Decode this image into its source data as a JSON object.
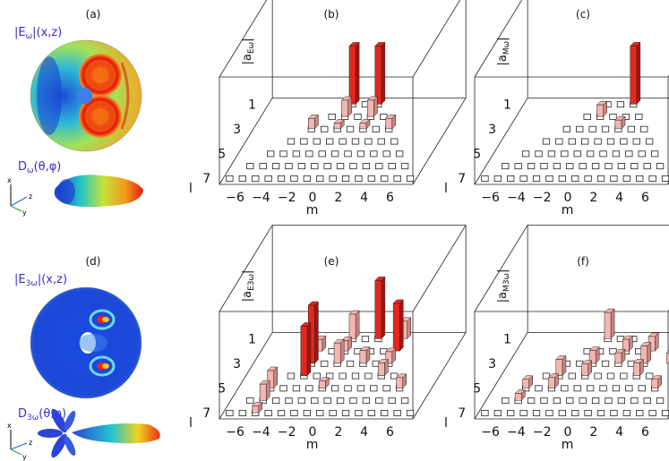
{
  "panels": [
    {
      "id": "a",
      "label": "(a)",
      "field_label": "|E",
      "field_sub": "ω",
      "field_tail": "|(x,z)",
      "pattern_label": "D",
      "pattern_sub": "ω",
      "pattern_tail": "(θ,φ)",
      "axes_letters": [
        "x",
        "z",
        "y"
      ]
    },
    {
      "id": "d",
      "label": "(d)",
      "field_label": "|E",
      "field_sub": "3ω",
      "field_tail": "|(x,z)",
      "pattern_label": "D",
      "pattern_sub": "3ω",
      "pattern_tail": "(θ,φ)",
      "axes_letters": [
        "x",
        "z",
        "y"
      ]
    }
  ],
  "chart_data": [
    {
      "id": "b",
      "type": "bar3d",
      "panel_label": "(b)",
      "zlabel_main": "|a",
      "zlabel_sub": "Eω",
      "zlabel_end": "|",
      "xlabel": "m",
      "ylabel": "l",
      "m_ticks": [
        "−6",
        "−4",
        "−2",
        "0",
        "2",
        "4",
        "6"
      ],
      "l_ticks": [
        "1",
        "3",
        "5",
        "7"
      ],
      "l_range": [
        1,
        7
      ],
      "m_range": [
        -7,
        7
      ],
      "bars": [
        {
          "l": 1,
          "m": -1,
          "value": 1.0,
          "color": "red"
        },
        {
          "l": 1,
          "m": 1,
          "value": 1.0,
          "color": "red"
        },
        {
          "l": 2,
          "m": -1,
          "value": 0.28,
          "color": "pink"
        },
        {
          "l": 2,
          "m": 1,
          "value": 0.28,
          "color": "pink"
        },
        {
          "l": 3,
          "m": -3,
          "value": 0.18,
          "color": "pink"
        },
        {
          "l": 3,
          "m": -1,
          "value": 0.1,
          "color": "pink"
        },
        {
          "l": 3,
          "m": 1,
          "value": 0.1,
          "color": "pink"
        },
        {
          "l": 3,
          "m": 3,
          "value": 0.18,
          "color": "pink"
        }
      ]
    },
    {
      "id": "c",
      "type": "bar3d",
      "panel_label": "(c)",
      "zlabel_main": "|a",
      "zlabel_sub": "Mω",
      "zlabel_end": "|",
      "xlabel": "m",
      "ylabel": "l",
      "m_ticks": [
        "−6",
        "−4",
        "−2",
        "0",
        "2",
        "4",
        "6"
      ],
      "l_ticks": [
        "1",
        "3",
        "5",
        "7"
      ],
      "l_range": [
        1,
        7
      ],
      "m_range": [
        -7,
        7
      ],
      "bars": [
        {
          "l": 1,
          "m": 1,
          "value": 1.0,
          "color": "red"
        },
        {
          "l": 2,
          "m": -1,
          "value": 0.2,
          "color": "pink"
        },
        {
          "l": 3,
          "m": 1,
          "value": 0.15,
          "color": "pink"
        }
      ]
    },
    {
      "id": "e",
      "type": "bar3d",
      "panel_label": "(e)",
      "zlabel_main": "|a",
      "zlabel_sub": "E3ω",
      "zlabel_end": "|",
      "xlabel": "m",
      "ylabel": "l",
      "m_ticks": [
        "−6",
        "−4",
        "−2",
        "0",
        "2",
        "4",
        "6"
      ],
      "l_ticks": [
        "1",
        "3",
        "5",
        "7"
      ],
      "l_range": [
        1,
        7
      ],
      "m_range": [
        -7,
        7
      ],
      "bars": [
        {
          "l": 1,
          "m": -1,
          "value": 0.42,
          "color": "pink"
        },
        {
          "l": 1,
          "m": 1,
          "value": 1.0,
          "color": "red"
        },
        {
          "l": 1,
          "m": 3,
          "value": 0.3,
          "color": "pink"
        },
        {
          "l": 2,
          "m": -3,
          "value": 0.2,
          "color": "pink"
        },
        {
          "l": 2,
          "m": -1,
          "value": 0.18,
          "color": "pink"
        },
        {
          "l": 2,
          "m": 3,
          "value": 0.82,
          "color": "red"
        },
        {
          "l": 3,
          "m": -3,
          "value": 1.0,
          "color": "red"
        },
        {
          "l": 3,
          "m": -1,
          "value": 0.35,
          "color": "pink"
        },
        {
          "l": 3,
          "m": 1,
          "value": 0.22,
          "color": "pink"
        },
        {
          "l": 3,
          "m": 3,
          "value": 0.2,
          "color": "pink"
        },
        {
          "l": 4,
          "m": -3,
          "value": 0.85,
          "color": "red"
        },
        {
          "l": 4,
          "m": 3,
          "value": 0.22,
          "color": "pink"
        },
        {
          "l": 5,
          "m": -5,
          "value": 0.3,
          "color": "pink"
        },
        {
          "l": 5,
          "m": -1,
          "value": 0.12,
          "color": "pink"
        },
        {
          "l": 5,
          "m": 5,
          "value": 0.18,
          "color": "pink"
        },
        {
          "l": 6,
          "m": -5,
          "value": 0.28,
          "color": "pink"
        },
        {
          "l": 7,
          "m": -5,
          "value": 0.12,
          "color": "pink"
        }
      ]
    },
    {
      "id": "f",
      "type": "bar3d",
      "panel_label": "(f)",
      "zlabel_main": "|a",
      "zlabel_sub": "M3ω",
      "zlabel_end": "|",
      "xlabel": "m",
      "ylabel": "l",
      "m_ticks": [
        "−6",
        "−4",
        "−2",
        "0",
        "2",
        "4",
        "6"
      ],
      "l_ticks": [
        "1",
        "3",
        "5",
        "7"
      ],
      "l_range": [
        1,
        7
      ],
      "m_range": [
        -7,
        7
      ],
      "bars": [
        {
          "l": 1,
          "m": -1,
          "value": 0.45,
          "color": "pink"
        },
        {
          "l": 2,
          "m": 1,
          "value": 0.2,
          "color": "pink"
        },
        {
          "l": 2,
          "m": 3,
          "value": 0.25,
          "color": "pink"
        },
        {
          "l": 3,
          "m": -1,
          "value": 0.22,
          "color": "pink"
        },
        {
          "l": 3,
          "m": 1,
          "value": 0.18,
          "color": "pink"
        },
        {
          "l": 3,
          "m": 3,
          "value": 0.3,
          "color": "pink"
        },
        {
          "l": 3,
          "m": 5,
          "value": 0.18,
          "color": "pink"
        },
        {
          "l": 4,
          "m": -3,
          "value": 0.28,
          "color": "pink"
        },
        {
          "l": 4,
          "m": -1,
          "value": 0.2,
          "color": "pink"
        },
        {
          "l": 4,
          "m": 3,
          "value": 0.22,
          "color": "pink"
        },
        {
          "l": 5,
          "m": -5,
          "value": 0.15,
          "color": "pink"
        },
        {
          "l": 5,
          "m": -3,
          "value": 0.18,
          "color": "pink"
        },
        {
          "l": 5,
          "m": 5,
          "value": 0.15,
          "color": "pink"
        },
        {
          "l": 6,
          "m": -5,
          "value": 0.12,
          "color": "pink"
        }
      ]
    }
  ],
  "colors": {
    "red": "#e8261c",
    "red_dark": "#a8130d",
    "pink": "#f4b6b1",
    "pink_dark": "#c98580",
    "field_blue": "#1f3fd8",
    "text_violet": "#3b2fc9"
  }
}
